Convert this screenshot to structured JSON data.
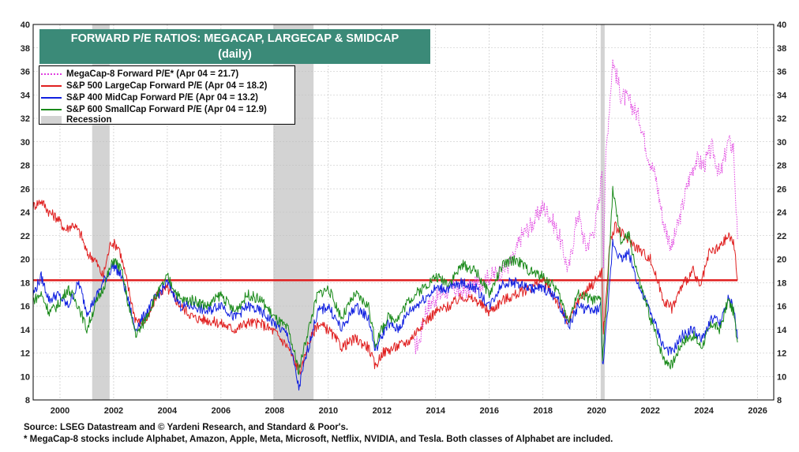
{
  "chart_data": {
    "type": "line",
    "title": "FORWARD P/E RATIOS: MEGACAP, LARGECAP & SMIDCAP",
    "subtitle": "(daily)",
    "ylim": [
      8,
      40
    ],
    "xlim": [
      1999.0,
      2026.6
    ],
    "y_ticks": [
      8,
      10,
      12,
      14,
      16,
      18,
      20,
      22,
      24,
      26,
      28,
      30,
      32,
      34,
      36,
      38,
      40
    ],
    "x_ticks": [
      2000,
      2002,
      2004,
      2006,
      2008,
      2010,
      2012,
      2014,
      2016,
      2018,
      2020,
      2022,
      2024,
      2026
    ],
    "grid": true,
    "legend_position": "top-left",
    "recession_label": "Recession",
    "recessions": [
      [
        2001.2,
        2001.85
      ],
      [
        2007.95,
        2009.45
      ],
      [
        2020.15,
        2020.3
      ]
    ],
    "reference_line": {
      "y": 18.2,
      "color": "#e02020"
    },
    "series": [
      {
        "name": "MegaCap-8 Forward P/E* (Apr 04 = 21.7)",
        "color": "#e040e0",
        "style": "dotted",
        "points": [
          [
            2013.2,
            12.5
          ],
          [
            2013.4,
            13.0
          ],
          [
            2013.6,
            15.5
          ],
          [
            2013.9,
            16.5
          ],
          [
            2014.2,
            17.0
          ],
          [
            2014.6,
            17.5
          ],
          [
            2015.0,
            17.2
          ],
          [
            2015.5,
            17.8
          ],
          [
            2016.0,
            18.5
          ],
          [
            2016.5,
            19.0
          ],
          [
            2016.9,
            20.0
          ],
          [
            2017.2,
            22.0
          ],
          [
            2017.6,
            23.0
          ],
          [
            2018.0,
            24.5
          ],
          [
            2018.3,
            23.5
          ],
          [
            2018.6,
            22.0
          ],
          [
            2018.95,
            19.0
          ],
          [
            2019.3,
            24.0
          ],
          [
            2019.6,
            21.0
          ],
          [
            2019.9,
            22.5
          ],
          [
            2020.1,
            25.0
          ],
          [
            2020.2,
            28.0
          ],
          [
            2020.25,
            20.0
          ],
          [
            2020.35,
            29.0
          ],
          [
            2020.6,
            37.0
          ],
          [
            2020.9,
            34.0
          ],
          [
            2021.2,
            33.5
          ],
          [
            2021.6,
            32.0
          ],
          [
            2021.9,
            29.0
          ],
          [
            2022.2,
            27.0
          ],
          [
            2022.5,
            23.0
          ],
          [
            2022.8,
            21.0
          ],
          [
            2023.1,
            23.5
          ],
          [
            2023.4,
            26.5
          ],
          [
            2023.7,
            28.5
          ],
          [
            2024.0,
            28.0
          ],
          [
            2024.3,
            29.5
          ],
          [
            2024.6,
            27.0
          ],
          [
            2024.9,
            30.0
          ],
          [
            2025.1,
            29.5
          ],
          [
            2025.25,
            21.7
          ]
        ]
      },
      {
        "name": "S&P 500 LargeCap Forward P/E (Apr 04 = 18.2)",
        "color": "#e02020",
        "style": "solid",
        "points": [
          [
            1999.0,
            24.5
          ],
          [
            1999.3,
            25.0
          ],
          [
            1999.6,
            24.0
          ],
          [
            1999.9,
            23.5
          ],
          [
            2000.2,
            22.5
          ],
          [
            2000.5,
            23.0
          ],
          [
            2000.8,
            22.0
          ],
          [
            2001.0,
            20.5
          ],
          [
            2001.3,
            20.0
          ],
          [
            2001.6,
            18.5
          ],
          [
            2001.9,
            21.5
          ],
          [
            2002.2,
            21.0
          ],
          [
            2002.5,
            18.0
          ],
          [
            2002.8,
            15.0
          ],
          [
            2003.0,
            14.5
          ],
          [
            2003.3,
            15.0
          ],
          [
            2003.6,
            17.0
          ],
          [
            2004.0,
            17.5
          ],
          [
            2004.5,
            16.0
          ],
          [
            2005.0,
            15.0
          ],
          [
            2005.5,
            14.8
          ],
          [
            2006.0,
            14.5
          ],
          [
            2006.5,
            14.0
          ],
          [
            2007.0,
            14.6
          ],
          [
            2007.5,
            14.5
          ],
          [
            2008.0,
            13.8
          ],
          [
            2008.5,
            12.5
          ],
          [
            2008.8,
            11.0
          ],
          [
            2009.0,
            10.5
          ],
          [
            2009.2,
            12.5
          ],
          [
            2009.6,
            14.5
          ],
          [
            2010.0,
            14.0
          ],
          [
            2010.5,
            12.5
          ],
          [
            2011.0,
            13.2
          ],
          [
            2011.5,
            12.5
          ],
          [
            2011.75,
            10.8
          ],
          [
            2012.0,
            12.0
          ],
          [
            2012.5,
            12.5
          ],
          [
            2013.0,
            13.0
          ],
          [
            2013.5,
            14.5
          ],
          [
            2014.0,
            15.5
          ],
          [
            2014.5,
            16.0
          ],
          [
            2015.0,
            16.8
          ],
          [
            2015.5,
            16.5
          ],
          [
            2016.0,
            15.5
          ],
          [
            2016.5,
            16.5
          ],
          [
            2017.0,
            17.0
          ],
          [
            2017.5,
            17.5
          ],
          [
            2018.0,
            18.2
          ],
          [
            2018.5,
            16.5
          ],
          [
            2018.95,
            14.5
          ],
          [
            2019.3,
            16.5
          ],
          [
            2019.9,
            18.0
          ],
          [
            2020.2,
            19.0
          ],
          [
            2020.25,
            13.5
          ],
          [
            2020.5,
            21.5
          ],
          [
            2020.7,
            22.8
          ],
          [
            2021.0,
            22.0
          ],
          [
            2021.5,
            21.0
          ],
          [
            2022.0,
            20.0
          ],
          [
            2022.5,
            16.5
          ],
          [
            2022.8,
            15.8
          ],
          [
            2023.2,
            17.8
          ],
          [
            2023.6,
            19.0
          ],
          [
            2023.85,
            17.5
          ],
          [
            2024.2,
            20.5
          ],
          [
            2024.6,
            21.0
          ],
          [
            2024.9,
            22.0
          ],
          [
            2025.1,
            21.5
          ],
          [
            2025.25,
            18.2
          ]
        ]
      },
      {
        "name": "S&P 400 MidCap Forward P/E (Apr 04 = 13.2)",
        "color": "#1020e0",
        "style": "solid",
        "points": [
          [
            1999.0,
            17.0
          ],
          [
            1999.3,
            18.5
          ],
          [
            1999.6,
            16.5
          ],
          [
            1999.9,
            17.0
          ],
          [
            2000.3,
            16.0
          ],
          [
            2000.7,
            18.0
          ],
          [
            2001.0,
            15.5
          ],
          [
            2001.3,
            16.5
          ],
          [
            2001.6,
            18.0
          ],
          [
            2002.0,
            19.5
          ],
          [
            2002.3,
            18.5
          ],
          [
            2002.6,
            16.0
          ],
          [
            2002.8,
            14.0
          ],
          [
            2003.1,
            15.0
          ],
          [
            2003.5,
            16.5
          ],
          [
            2004.0,
            18.0
          ],
          [
            2004.5,
            16.0
          ],
          [
            2005.0,
            16.0
          ],
          [
            2005.5,
            15.5
          ],
          [
            2006.0,
            16.2
          ],
          [
            2006.5,
            15.0
          ],
          [
            2007.0,
            16.0
          ],
          [
            2007.5,
            15.5
          ],
          [
            2008.0,
            14.5
          ],
          [
            2008.5,
            13.5
          ],
          [
            2008.9,
            9.0
          ],
          [
            2009.2,
            12.0
          ],
          [
            2009.6,
            15.5
          ],
          [
            2010.0,
            16.0
          ],
          [
            2010.5,
            14.0
          ],
          [
            2011.0,
            16.0
          ],
          [
            2011.5,
            15.0
          ],
          [
            2011.75,
            12.2
          ],
          [
            2012.2,
            14.5
          ],
          [
            2012.6,
            14.0
          ],
          [
            2013.0,
            15.5
          ],
          [
            2013.5,
            16.5
          ],
          [
            2014.0,
            17.5
          ],
          [
            2014.5,
            17.5
          ],
          [
            2015.0,
            18.0
          ],
          [
            2015.5,
            17.5
          ],
          [
            2016.0,
            16.0
          ],
          [
            2016.5,
            18.0
          ],
          [
            2017.0,
            18.0
          ],
          [
            2017.5,
            17.5
          ],
          [
            2018.0,
            17.5
          ],
          [
            2018.5,
            16.8
          ],
          [
            2018.95,
            14.2
          ],
          [
            2019.3,
            16.0
          ],
          [
            2019.9,
            15.5
          ],
          [
            2020.15,
            16.0
          ],
          [
            2020.22,
            10.8
          ],
          [
            2020.4,
            15.0
          ],
          [
            2020.6,
            21.5
          ],
          [
            2020.9,
            20.0
          ],
          [
            2021.2,
            20.5
          ],
          [
            2021.6,
            17.5
          ],
          [
            2022.0,
            15.5
          ],
          [
            2022.5,
            12.5
          ],
          [
            2022.8,
            12.0
          ],
          [
            2023.2,
            13.5
          ],
          [
            2023.6,
            14.0
          ],
          [
            2023.9,
            13.0
          ],
          [
            2024.3,
            15.0
          ],
          [
            2024.6,
            14.5
          ],
          [
            2024.9,
            16.5
          ],
          [
            2025.1,
            16.0
          ],
          [
            2025.25,
            13.2
          ]
        ]
      },
      {
        "name": "S&P 600 SmallCap Forward P/E (Apr 04 = 12.9)",
        "color": "#1a8a1a",
        "style": "solid",
        "points": [
          [
            1999.0,
            16.5
          ],
          [
            1999.3,
            17.0
          ],
          [
            1999.6,
            15.5
          ],
          [
            1999.9,
            16.0
          ],
          [
            2000.3,
            17.5
          ],
          [
            2000.7,
            16.0
          ],
          [
            2001.0,
            14.0
          ],
          [
            2001.3,
            16.0
          ],
          [
            2001.6,
            17.5
          ],
          [
            2002.0,
            20.0
          ],
          [
            2002.3,
            19.0
          ],
          [
            2002.6,
            15.5
          ],
          [
            2002.85,
            13.5
          ],
          [
            2003.1,
            14.5
          ],
          [
            2003.5,
            16.5
          ],
          [
            2004.0,
            18.5
          ],
          [
            2004.5,
            16.5
          ],
          [
            2005.0,
            16.5
          ],
          [
            2005.5,
            16.0
          ],
          [
            2006.0,
            17.0
          ],
          [
            2006.5,
            15.5
          ],
          [
            2007.0,
            17.0
          ],
          [
            2007.5,
            16.5
          ],
          [
            2008.0,
            15.0
          ],
          [
            2008.5,
            14.0
          ],
          [
            2008.9,
            10.5
          ],
          [
            2009.2,
            13.5
          ],
          [
            2009.6,
            17.0
          ],
          [
            2010.0,
            17.5
          ],
          [
            2010.5,
            15.0
          ],
          [
            2011.0,
            17.0
          ],
          [
            2011.5,
            16.0
          ],
          [
            2011.75,
            12.8
          ],
          [
            2012.2,
            15.0
          ],
          [
            2012.6,
            15.0
          ],
          [
            2013.0,
            16.5
          ],
          [
            2013.5,
            17.5
          ],
          [
            2014.0,
            18.5
          ],
          [
            2014.5,
            18.0
          ],
          [
            2015.0,
            19.5
          ],
          [
            2015.5,
            19.0
          ],
          [
            2016.0,
            17.0
          ],
          [
            2016.5,
            19.5
          ],
          [
            2017.0,
            20.0
          ],
          [
            2017.5,
            19.0
          ],
          [
            2018.0,
            18.5
          ],
          [
            2018.5,
            17.5
          ],
          [
            2018.95,
            14.8
          ],
          [
            2019.3,
            17.0
          ],
          [
            2019.9,
            16.5
          ],
          [
            2020.15,
            16.5
          ],
          [
            2020.22,
            11.5
          ],
          [
            2020.4,
            17.0
          ],
          [
            2020.6,
            26.0
          ],
          [
            2020.9,
            21.5
          ],
          [
            2021.2,
            22.0
          ],
          [
            2021.6,
            18.0
          ],
          [
            2022.0,
            15.0
          ],
          [
            2022.5,
            11.5
          ],
          [
            2022.8,
            11.0
          ],
          [
            2023.2,
            13.0
          ],
          [
            2023.6,
            13.5
          ],
          [
            2023.9,
            12.5
          ],
          [
            2024.3,
            14.5
          ],
          [
            2024.6,
            14.0
          ],
          [
            2024.9,
            16.5
          ],
          [
            2025.1,
            15.5
          ],
          [
            2025.25,
            12.9
          ]
        ]
      }
    ]
  },
  "notes": {
    "source": "Source: LSEG Datastream and © Yardeni Research, and Standard & Poor's.",
    "footnote": "* MegaCap-8 stocks include Alphabet, Amazon, Apple, Meta, Microsoft, Netflix, NVIDIA, and Tesla. Both classes of Alphabet are included."
  }
}
